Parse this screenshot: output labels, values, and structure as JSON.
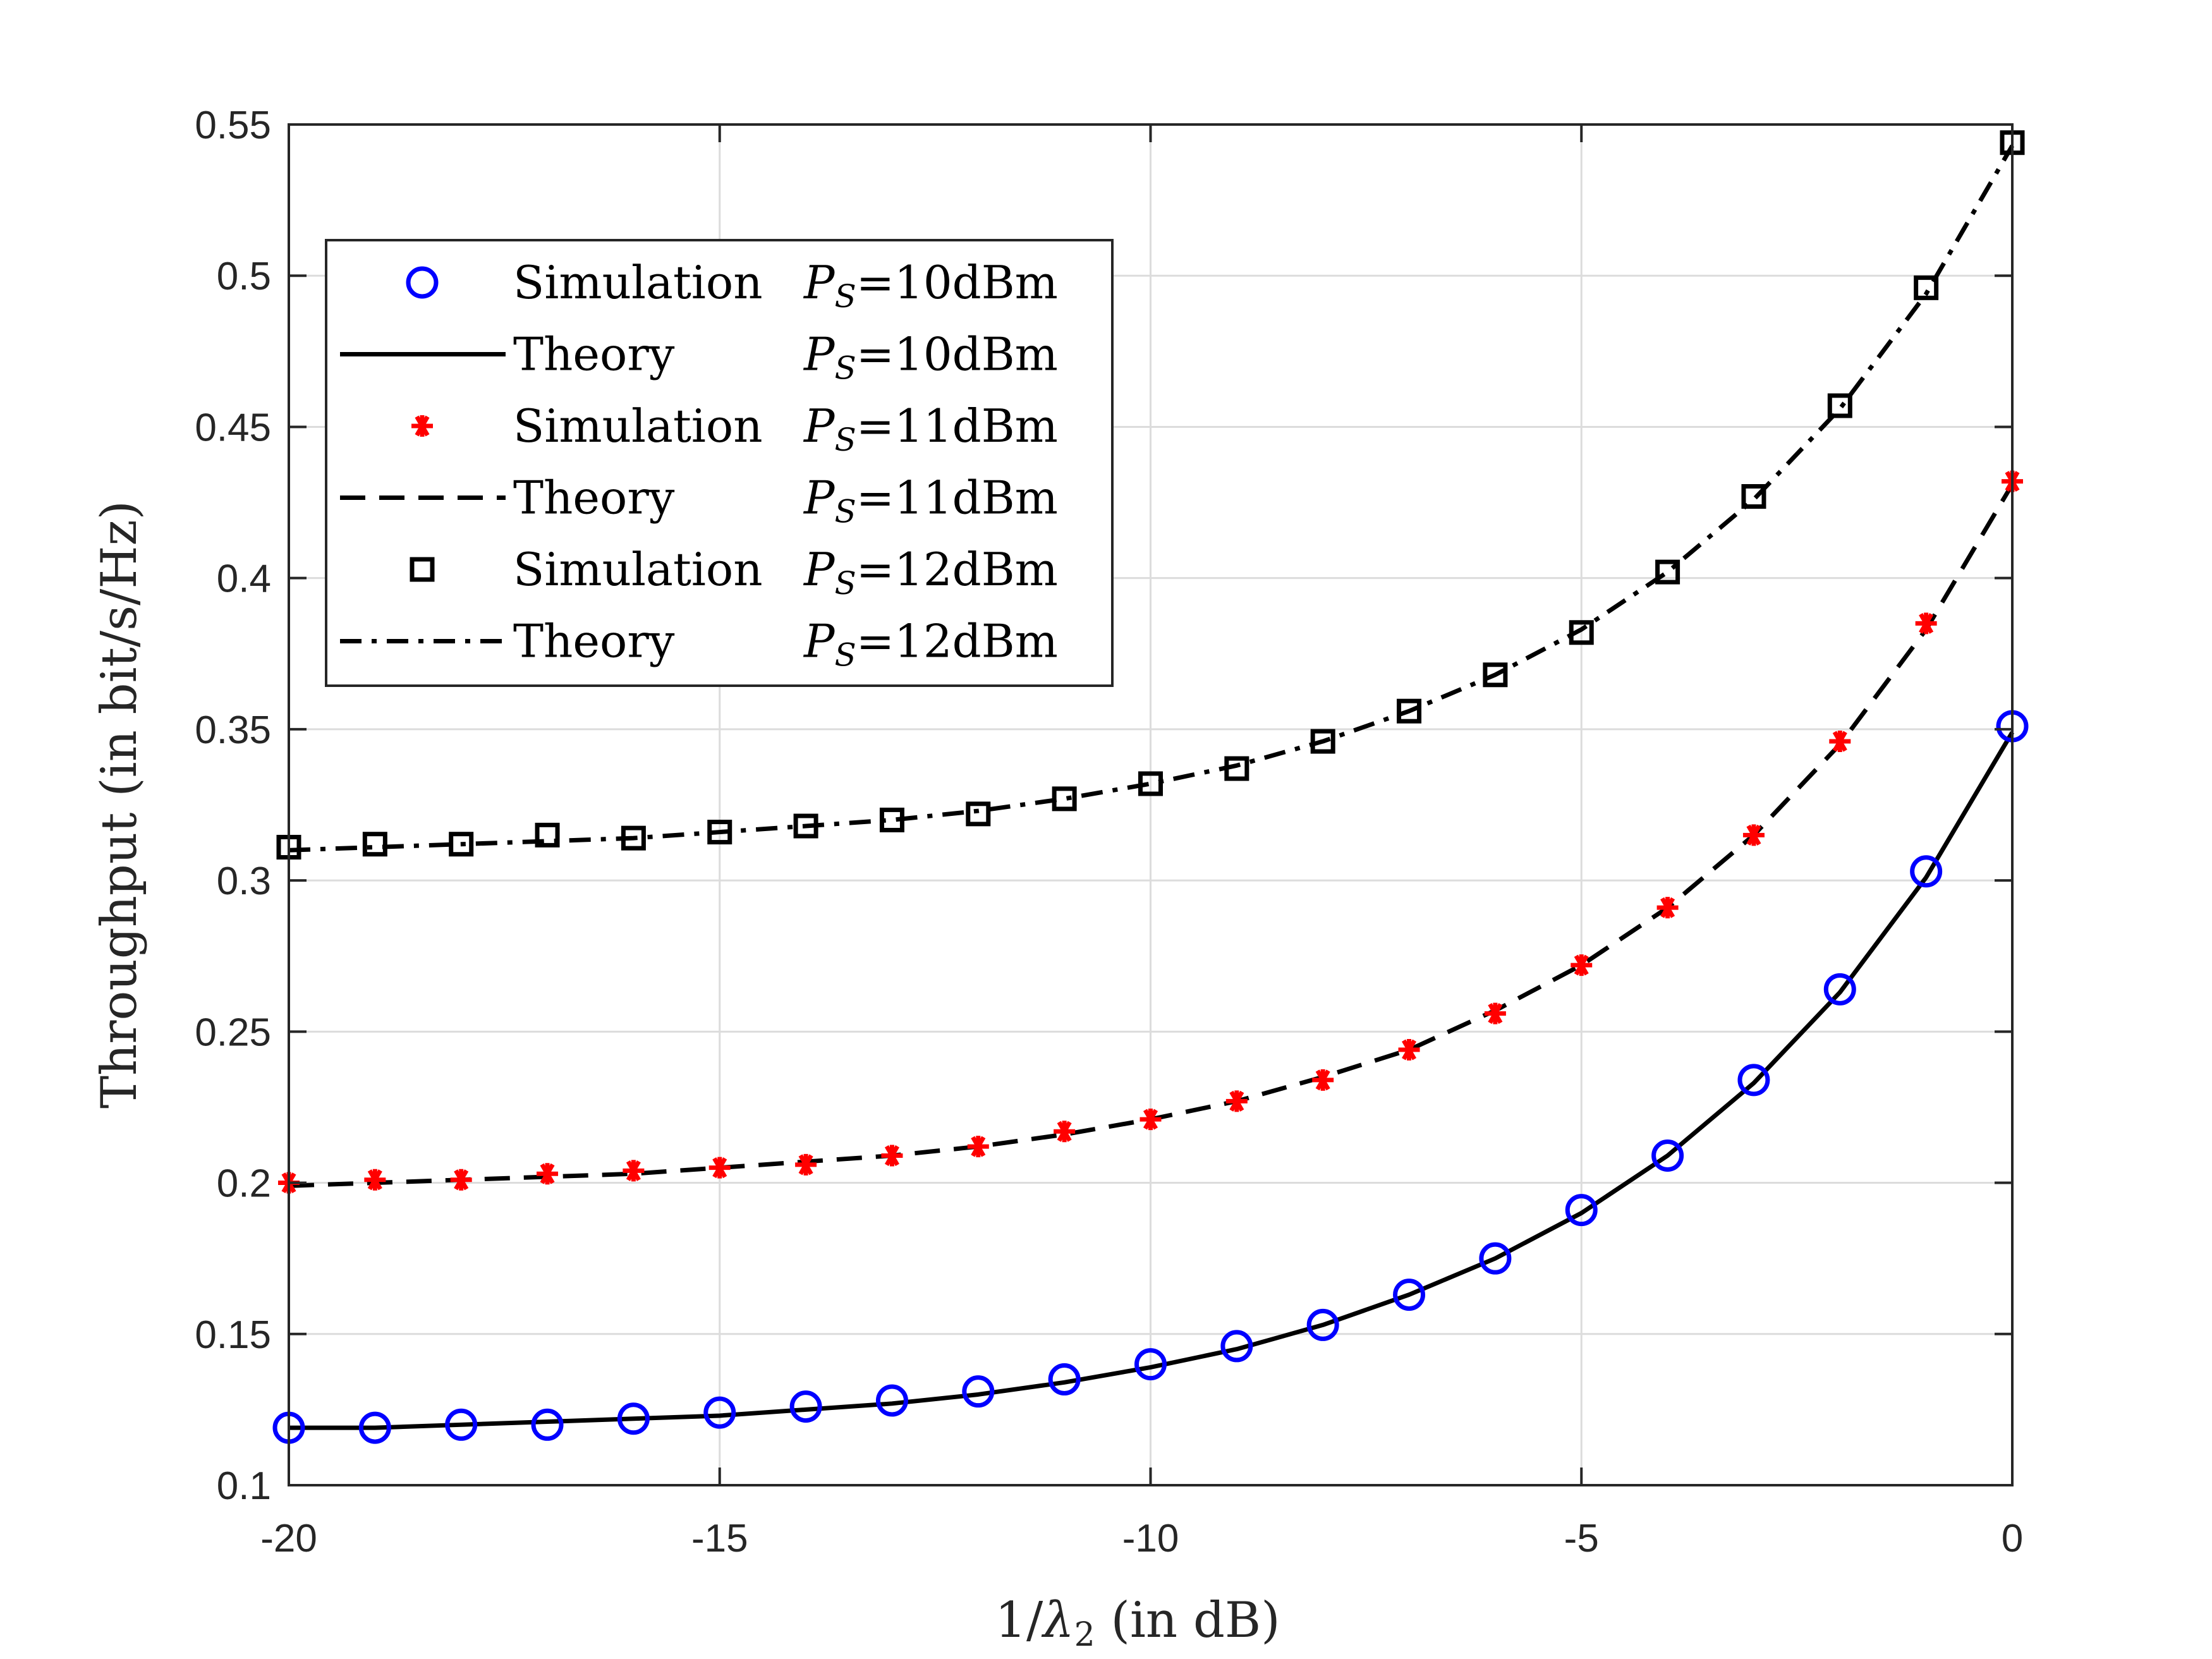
{
  "chart_data": {
    "type": "line",
    "title": "",
    "xlabel": "1/λ₂   (in dB)",
    "ylabel": "Throughput  (in bit/s/Hz)",
    "xlim": [
      -20,
      0
    ],
    "ylim": [
      0.1,
      0.55
    ],
    "xticks": [
      -20,
      -15,
      -10,
      -5,
      0
    ],
    "xtick_labels": [
      "-20",
      "-15",
      "-10",
      "-5",
      "0"
    ],
    "yticks": [
      0.1,
      0.15,
      0.2,
      0.25,
      0.3,
      0.35,
      0.4,
      0.45,
      0.5,
      0.55
    ],
    "ytick_labels": [
      "0.1",
      "0.15",
      "0.2",
      "0.25",
      "0.3",
      "0.35",
      "0.4",
      "0.45",
      "0.5",
      "0.55"
    ],
    "grid": true,
    "legend_position": "top-left",
    "x": [
      -20,
      -19,
      -18,
      -17,
      -16,
      -15,
      -14,
      -13,
      -12,
      -11,
      -10,
      -9,
      -8,
      -7,
      -6,
      -5,
      -4,
      -3,
      -2,
      -1,
      0
    ],
    "series": [
      {
        "name": "Simulation  PS=10dBm",
        "label_main": "Simulation",
        "label_param": "P_S=10dBm",
        "kind": "marker",
        "marker": "circle",
        "color": "#0000ff",
        "values": [
          0.119,
          0.119,
          0.12,
          0.12,
          0.122,
          0.124,
          0.126,
          0.128,
          0.131,
          0.135,
          0.14,
          0.146,
          0.153,
          0.163,
          0.175,
          0.191,
          0.209,
          0.234,
          0.264,
          0.303,
          0.351
        ]
      },
      {
        "name": "Theory  PS=10dBm",
        "label_main": "Theory",
        "label_param": "P_S=10dBm",
        "kind": "line",
        "dash": "solid",
        "color": "#000000",
        "values": [
          0.119,
          0.119,
          0.12,
          0.121,
          0.122,
          0.123,
          0.125,
          0.127,
          0.13,
          0.134,
          0.139,
          0.145,
          0.153,
          0.163,
          0.175,
          0.19,
          0.209,
          0.233,
          0.263,
          0.301,
          0.349
        ]
      },
      {
        "name": "Simulation  PS=11dBm",
        "label_main": "Simulation",
        "label_param": "P_S=11dBm",
        "kind": "marker",
        "marker": "asterisk",
        "color": "#ff0000",
        "values": [
          0.2,
          0.201,
          0.201,
          0.203,
          0.204,
          0.205,
          0.206,
          0.209,
          0.212,
          0.217,
          0.221,
          0.227,
          0.234,
          0.244,
          0.256,
          0.272,
          0.291,
          0.315,
          0.346,
          0.385,
          0.432
        ]
      },
      {
        "name": "Theory  PS=11dBm",
        "label_main": "Theory",
        "label_param": "P_S=11dBm",
        "kind": "line",
        "dash": "dashed",
        "color": "#000000",
        "values": [
          0.199,
          0.2,
          0.201,
          0.202,
          0.203,
          0.205,
          0.207,
          0.209,
          0.212,
          0.216,
          0.221,
          0.227,
          0.235,
          0.244,
          0.257,
          0.272,
          0.291,
          0.315,
          0.345,
          0.383,
          0.431
        ]
      },
      {
        "name": "Simulation  PS=12dBm",
        "label_main": "Simulation",
        "label_param": "P_S=12dBm",
        "kind": "marker",
        "marker": "square",
        "color": "#000000",
        "values": [
          0.311,
          0.312,
          0.312,
          0.315,
          0.314,
          0.316,
          0.318,
          0.32,
          0.322,
          0.327,
          0.332,
          0.337,
          0.346,
          0.356,
          0.368,
          0.382,
          0.402,
          0.427,
          0.457,
          0.496,
          0.544
        ]
      },
      {
        "name": "Theory  PS=12dBm",
        "label_main": "Theory",
        "label_param": "P_S=12dBm",
        "kind": "line",
        "dash": "dashdot",
        "color": "#000000",
        "values": [
          0.31,
          0.311,
          0.312,
          0.313,
          0.314,
          0.316,
          0.318,
          0.32,
          0.323,
          0.327,
          0.332,
          0.338,
          0.346,
          0.356,
          0.368,
          0.383,
          0.402,
          0.426,
          0.456,
          0.494,
          0.543
        ]
      }
    ]
  }
}
